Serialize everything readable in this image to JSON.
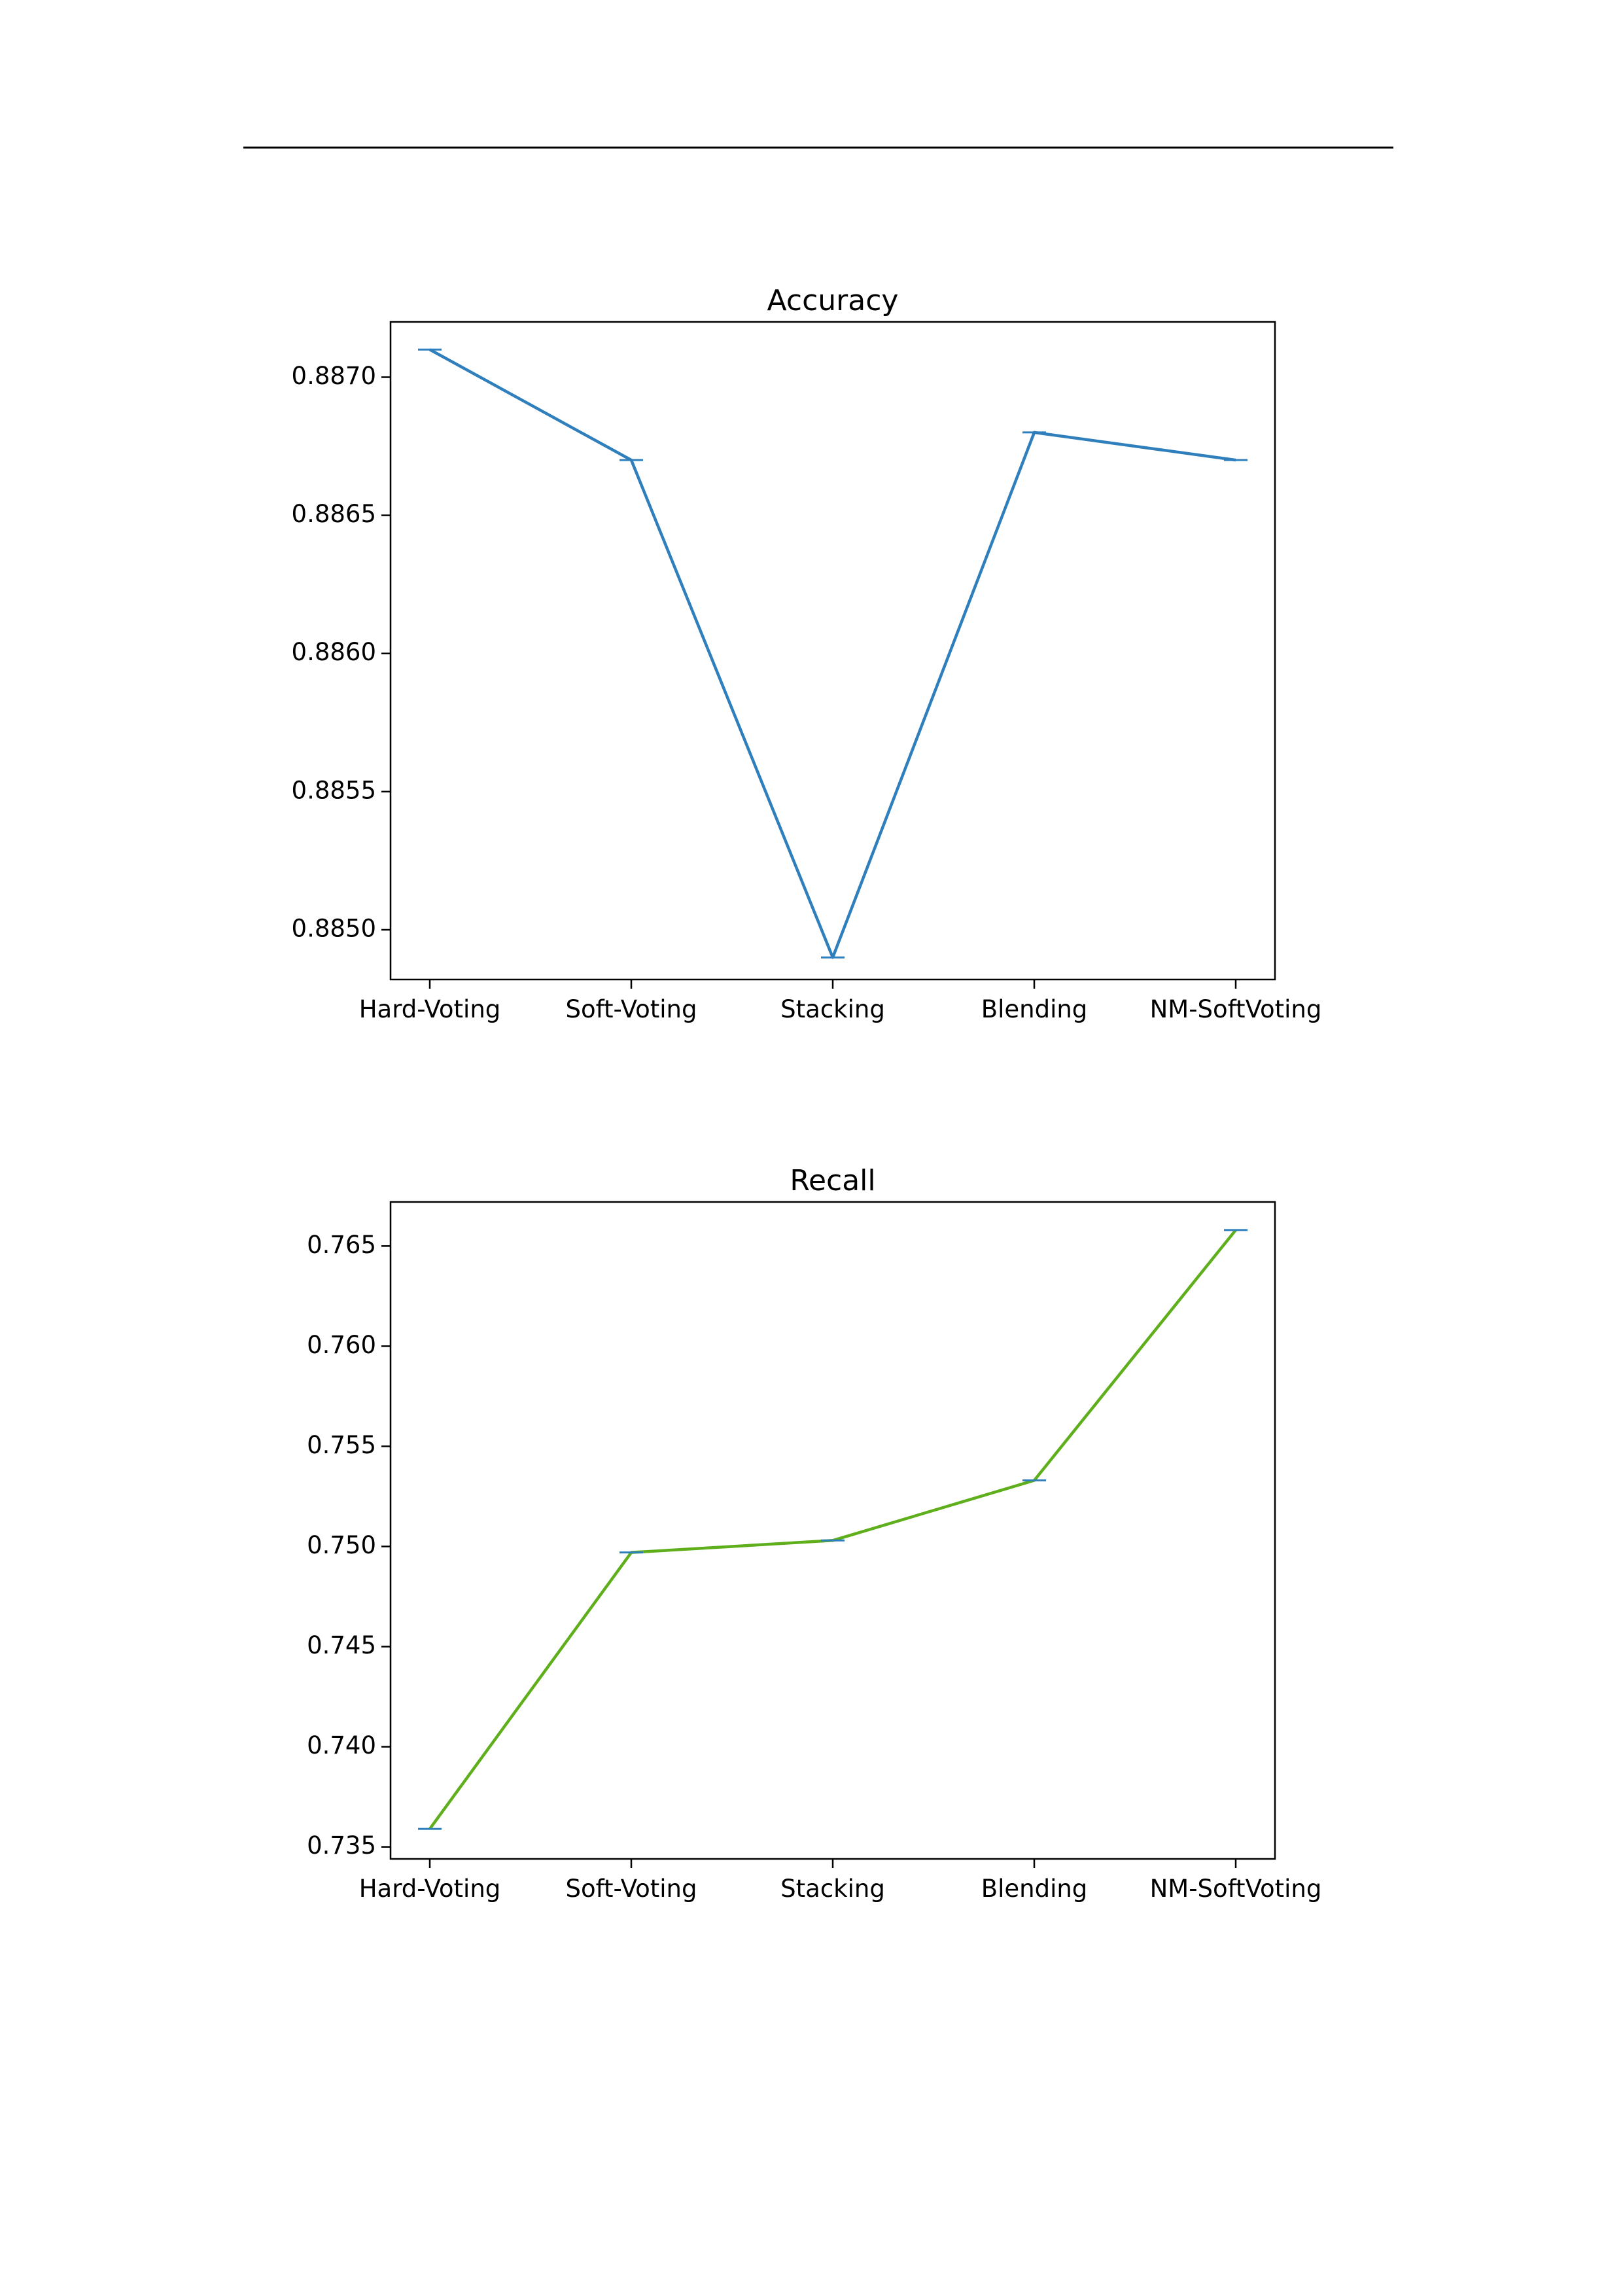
{
  "chart_data": [
    {
      "type": "line",
      "title": "Accuracy",
      "xlabel": "",
      "ylabel": "",
      "categories": [
        "Hard-Voting",
        "Soft-Voting",
        "Stacking",
        "Blending",
        "NM-SoftVoting"
      ],
      "series": [
        {
          "values": [
            0.8871,
            0.8867,
            0.8849,
            0.8868,
            0.8867
          ],
          "color": "#2f7fbd"
        }
      ],
      "errorbar_color": "#2f7fbd",
      "ylim": [
        0.88482,
        0.8872
      ],
      "yticks": [
        0.885,
        0.8855,
        0.886,
        0.8865,
        0.887
      ],
      "ytick_labels": [
        "0.8850",
        "0.8855",
        "0.8860",
        "0.8865",
        "0.8870"
      ],
      "grid": false,
      "legend": "none"
    },
    {
      "type": "line",
      "title": "Recall",
      "xlabel": "",
      "ylabel": "",
      "categories": [
        "Hard-Voting",
        "Soft-Voting",
        "Stacking",
        "Blending",
        "NM-SoftVoting"
      ],
      "series": [
        {
          "values": [
            0.7359,
            0.7497,
            0.7503,
            0.7533,
            0.7658
          ],
          "color": "#5fae1c"
        }
      ],
      "errorbar_color": "#2f7fbd",
      "ylim": [
        0.7344,
        0.7672
      ],
      "yticks": [
        0.735,
        0.74,
        0.745,
        0.75,
        0.755,
        0.76,
        0.765
      ],
      "ytick_labels": [
        "0.735",
        "0.740",
        "0.745",
        "0.750",
        "0.755",
        "0.760",
        "0.765"
      ],
      "grid": false,
      "legend": "none"
    }
  ]
}
